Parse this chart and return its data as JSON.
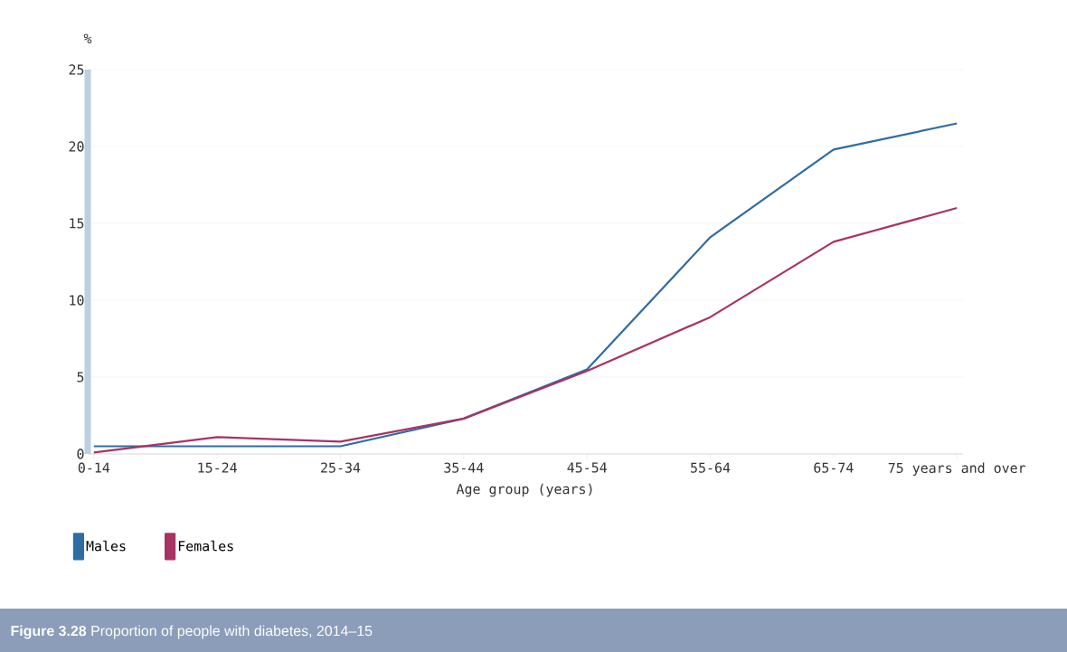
{
  "chart_data": {
    "type": "line",
    "title": "**Figure 3.28** Proportion of people with diabetes, 2014–15",
    "xlabel": "Age group (years)",
    "ylabel": "%",
    "categories": [
      "0-14",
      "15-24",
      "25-34",
      "35-44",
      "45-54",
      "55-64",
      "65-74",
      "75 years and over"
    ],
    "series": [
      {
        "name": "Males",
        "color": "#2f6ca3",
        "values": [
          0.5,
          0.5,
          0.5,
          2.3,
          5.5,
          14.1,
          19.8,
          21.5
        ]
      },
      {
        "name": "Females",
        "color": "#a83363",
        "values": [
          0.1,
          1.1,
          0.8,
          2.3,
          5.4,
          8.9,
          13.8,
          16.0
        ]
      }
    ],
    "ylim": [
      0,
      25
    ],
    "yticks": [
      0,
      5,
      10,
      15,
      20,
      25
    ],
    "grid": "y",
    "legend": "bottom left",
    "marker": "none",
    "line_style": "solid"
  }
}
